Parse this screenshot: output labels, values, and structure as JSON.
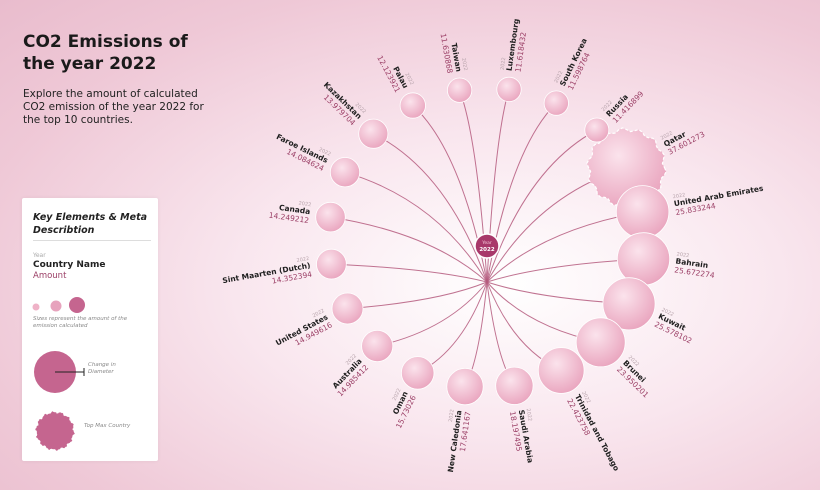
{
  "title": "CO2 Emissions of the year 2022",
  "subtitle": "Explore the amount of calculated CO2 emission of the year 2022 for the top 10 countries.",
  "colors": {
    "bubble": "#efb2c7",
    "line": "#b55a7e",
    "hub": "#a8386a",
    "amount": "#9b3f66"
  },
  "center_label": {
    "top": "Year",
    "bottom": "2022"
  },
  "legend": {
    "title": "Key Elements & Meta Describtion",
    "year": "Year",
    "country": "Country Name",
    "amount": "Amount",
    "sizes_note": "Sizes represent the amount of the emission calculated",
    "change_note": "Change in Diameter",
    "topmax_note": "Top Max Country"
  },
  "chart_data": {
    "type": "radial-bubble",
    "year": "2022",
    "points": [
      {
        "country": "Qatar",
        "value": 37.601273,
        "top": true
      },
      {
        "country": "United Arab Emirates",
        "value": 25.833244
      },
      {
        "country": "Bahrain",
        "value": 25.672274
      },
      {
        "country": "Kuwait",
        "value": 25.578102
      },
      {
        "country": "Brunei",
        "value": 23.950201
      },
      {
        "country": "Trinidad and Tobago",
        "value": 22.423758
      },
      {
        "country": "Saudi Arabia",
        "value": 18.197495
      },
      {
        "country": "New Caledonia",
        "value": 17.641167
      },
      {
        "country": "Oman",
        "value": 15.73026
      },
      {
        "country": "Australia",
        "value": 14.985412
      },
      {
        "country": "United States",
        "value": 14.949616
      },
      {
        "country": "Sint Maarten (Dutch)",
        "value": 14.352394
      },
      {
        "country": "Canada",
        "value": 14.249212
      },
      {
        "country": "Faroe Islands",
        "value": 14.084624
      },
      {
        "country": "Kazakhstan",
        "value": 13.979704
      },
      {
        "country": "Palau",
        "value": 12.123921
      },
      {
        "country": "Taiwan",
        "value": 11.630868
      },
      {
        "country": "Luxembourg",
        "value": 11.618432
      },
      {
        "country": "South Korea",
        "value": 11.598764
      },
      {
        "country": "Russia",
        "value": 11.416899
      }
    ]
  }
}
